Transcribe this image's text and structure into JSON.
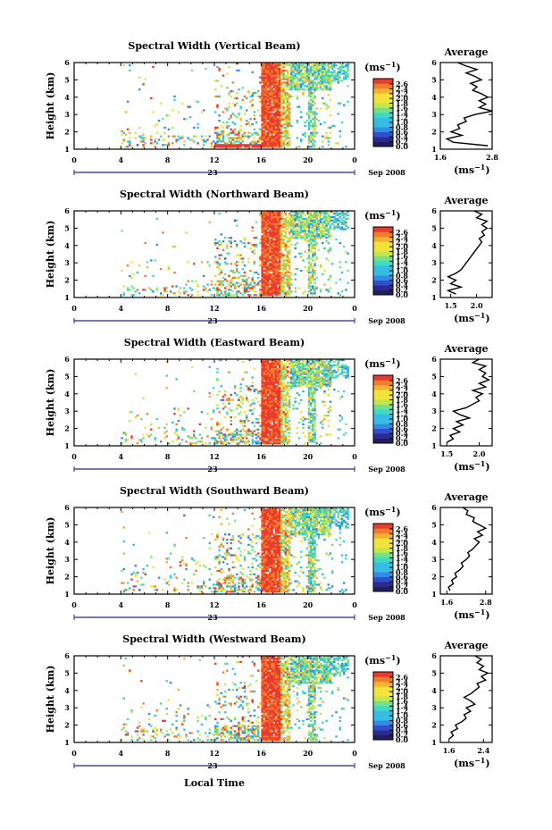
{
  "figure": {
    "xlabel": "Local Time",
    "date_label": "Sep 2008",
    "day_label": "23",
    "colorbar_unit": "(ms",
    "colorbar_unit_exp": "−1",
    "colorbar_unit_close": ")",
    "avg_unit": "(ms",
    "avg_unit_exp": "−1",
    "avg_unit_close": ")",
    "avg_title": "Average",
    "colorscale": [
      "#2b2a8f",
      "#2f50c9",
      "#2f8de6",
      "#37bde4",
      "#3fd9c4",
      "#73e08c",
      "#c0e84c",
      "#f2e33a",
      "#f6b12f",
      "#f07c2e",
      "#eb3a2b"
    ]
  },
  "chart_data": [
    {
      "type": "heatmap",
      "title": "Spectral Width (Vertical Beam)",
      "ylabel": "Height (km)",
      "x_ticks": [
        "0",
        "4",
        "8",
        "12",
        "16",
        "20",
        "0"
      ],
      "xlim": [
        0,
        24
      ],
      "y_ticks": [
        "1",
        "2",
        "3",
        "4",
        "5",
        "6"
      ],
      "ylim": [
        1,
        6
      ],
      "colorbar_ticks": [
        "2.6",
        "2.4",
        "2.2",
        "2.0",
        "1.8",
        "1.6",
        "1.4",
        "1.2",
        "1.0",
        "0.8",
        "0.6",
        "0.4",
        "0.2",
        "0.0"
      ],
      "colorbar_range": [
        0.0,
        2.8
      ],
      "average": {
        "x_ticks": [
          "1.6",
          "2.8"
        ],
        "xlim": [
          1.6,
          2.8
        ],
        "ylim": [
          1,
          6
        ],
        "y_ticks": [
          "1",
          "2",
          "3",
          "4",
          "5",
          "6"
        ],
        "profile": [
          [
            1.2,
            2.7
          ],
          [
            1.4,
            1.9
          ],
          [
            1.6,
            1.75
          ],
          [
            1.8,
            2.1
          ],
          [
            2.0,
            1.85
          ],
          [
            2.2,
            2.05
          ],
          [
            2.4,
            2.0
          ],
          [
            2.6,
            2.2
          ],
          [
            2.8,
            2.15
          ],
          [
            3.0,
            2.4
          ],
          [
            3.2,
            2.8
          ],
          [
            3.4,
            2.5
          ],
          [
            3.6,
            2.65
          ],
          [
            3.8,
            2.5
          ],
          [
            4.0,
            2.7
          ],
          [
            4.2,
            2.55
          ],
          [
            4.4,
            2.35
          ],
          [
            4.6,
            2.45
          ],
          [
            4.8,
            2.3
          ],
          [
            5.0,
            2.55
          ],
          [
            5.2,
            2.4
          ],
          [
            5.4,
            2.2
          ],
          [
            5.6,
            2.45
          ],
          [
            5.8,
            2.2
          ],
          [
            6.0,
            2.0
          ]
        ]
      }
    },
    {
      "type": "heatmap",
      "title": "Spectral Width (Northward Beam)",
      "ylabel": "Height (km)",
      "x_ticks": [
        "0",
        "4",
        "8",
        "12",
        "16",
        "20",
        "0"
      ],
      "xlim": [
        0,
        24
      ],
      "y_ticks": [
        "1",
        "2",
        "3",
        "4",
        "5",
        "6"
      ],
      "ylim": [
        1,
        6
      ],
      "colorbar_ticks": [
        "2.6",
        "2.4",
        "2.2",
        "2.0",
        "1.8",
        "1.6",
        "1.4",
        "1.2",
        "1.0",
        "0.8",
        "0.6",
        "0.4",
        "0.2",
        "0.0"
      ],
      "colorbar_range": [
        0.0,
        2.8
      ],
      "average": {
        "x_ticks": [
          "1.5",
          "2.0"
        ],
        "xlim": [
          1.3,
          2.3
        ],
        "ylim": [
          1,
          6
        ],
        "y_ticks": [
          "1",
          "2",
          "3",
          "4",
          "5",
          "6"
        ],
        "profile": [
          [
            1.2,
            1.6
          ],
          [
            1.4,
            1.45
          ],
          [
            1.6,
            1.7
          ],
          [
            1.8,
            1.5
          ],
          [
            2.0,
            1.6
          ],
          [
            2.2,
            1.45
          ],
          [
            2.4,
            1.6
          ],
          [
            2.6,
            1.7
          ],
          [
            2.8,
            1.75
          ],
          [
            3.0,
            1.8
          ],
          [
            3.2,
            1.85
          ],
          [
            3.4,
            1.9
          ],
          [
            3.6,
            1.95
          ],
          [
            3.8,
            2.0
          ],
          [
            4.0,
            2.05
          ],
          [
            4.2,
            2.1
          ],
          [
            4.4,
            2.05
          ],
          [
            4.6,
            2.15
          ],
          [
            4.8,
            2.1
          ],
          [
            5.0,
            2.2
          ],
          [
            5.2,
            2.1
          ],
          [
            5.4,
            2.2
          ],
          [
            5.6,
            2.0
          ],
          [
            5.8,
            2.1
          ],
          [
            6.0,
            1.95
          ]
        ]
      }
    },
    {
      "type": "heatmap",
      "title": "Spectral Width (Eastward Beam)",
      "ylabel": "Height (km)",
      "x_ticks": [
        "0",
        "4",
        "8",
        "12",
        "16",
        "20",
        "0"
      ],
      "xlim": [
        0,
        24
      ],
      "y_ticks": [
        "1",
        "2",
        "3",
        "4",
        "5",
        "6"
      ],
      "ylim": [
        1,
        6
      ],
      "colorbar_ticks": [
        "2.6",
        "2.4",
        "2.2",
        "2.0",
        "1.8",
        "1.6",
        "1.4",
        "1.2",
        "1.0",
        "0.8",
        "0.6",
        "0.4",
        "0.2",
        "0.0"
      ],
      "colorbar_range": [
        0.0,
        2.8
      ],
      "average": {
        "x_ticks": [
          "1.5",
          "2.0"
        ],
        "xlim": [
          1.4,
          2.2
        ],
        "ylim": [
          1,
          6
        ],
        "y_ticks": [
          "1",
          "2",
          "3",
          "4",
          "5",
          "6"
        ],
        "profile": [
          [
            1.2,
            1.5
          ],
          [
            1.4,
            1.6
          ],
          [
            1.6,
            1.55
          ],
          [
            1.8,
            1.7
          ],
          [
            2.0,
            1.6
          ],
          [
            2.2,
            1.75
          ],
          [
            2.4,
            1.65
          ],
          [
            2.6,
            1.85
          ],
          [
            2.8,
            1.7
          ],
          [
            3.0,
            1.6
          ],
          [
            3.2,
            1.8
          ],
          [
            3.4,
            1.9
          ],
          [
            3.6,
            2.0
          ],
          [
            3.8,
            1.95
          ],
          [
            4.0,
            2.05
          ],
          [
            4.2,
            1.9
          ],
          [
            4.4,
            2.1
          ],
          [
            4.6,
            2.0
          ],
          [
            4.8,
            2.15
          ],
          [
            5.0,
            2.05
          ],
          [
            5.2,
            2.1
          ],
          [
            5.4,
            2.0
          ],
          [
            5.6,
            2.1
          ],
          [
            5.8,
            1.9
          ],
          [
            6.0,
            2.0
          ]
        ]
      }
    },
    {
      "type": "heatmap",
      "title": "Spectral Width (Southward Beam)",
      "ylabel": "Height (km)",
      "x_ticks": [
        "0",
        "4",
        "8",
        "12",
        "16",
        "20",
        "0"
      ],
      "xlim": [
        0,
        24
      ],
      "y_ticks": [
        "1",
        "2",
        "3",
        "4",
        "5",
        "6"
      ],
      "ylim": [
        1,
        6
      ],
      "colorbar_ticks": [
        "2.6",
        "2.4",
        "2.2",
        "2.0",
        "1.8",
        "1.6",
        "1.4",
        "1.2",
        "1.0",
        "0.8",
        "0.6",
        "0.4",
        "0.2",
        "0.0"
      ],
      "colorbar_range": [
        0.0,
        2.8
      ],
      "average": {
        "x_ticks": [
          "1.6",
          "2.8"
        ],
        "xlim": [
          1.4,
          3.0
        ],
        "ylim": [
          1,
          6
        ],
        "y_ticks": [
          "1",
          "2",
          "3",
          "4",
          "5",
          "6"
        ],
        "profile": [
          [
            1.2,
            1.7
          ],
          [
            1.4,
            1.65
          ],
          [
            1.6,
            1.8
          ],
          [
            1.8,
            1.75
          ],
          [
            2.0,
            1.9
          ],
          [
            2.2,
            1.85
          ],
          [
            2.4,
            2.0
          ],
          [
            2.6,
            2.1
          ],
          [
            2.8,
            2.05
          ],
          [
            3.0,
            2.2
          ],
          [
            3.2,
            2.3
          ],
          [
            3.4,
            2.25
          ],
          [
            3.6,
            2.4
          ],
          [
            3.8,
            2.5
          ],
          [
            4.0,
            2.6
          ],
          [
            4.2,
            2.45
          ],
          [
            4.4,
            2.7
          ],
          [
            4.6,
            2.55
          ],
          [
            4.8,
            2.8
          ],
          [
            5.0,
            2.6
          ],
          [
            5.2,
            2.4
          ],
          [
            5.4,
            2.45
          ],
          [
            5.6,
            2.2
          ],
          [
            5.8,
            2.25
          ],
          [
            6.0,
            2.1
          ]
        ]
      }
    },
    {
      "type": "heatmap",
      "title": "Spectral Width (Westward Beam)",
      "ylabel": "Height (km)",
      "x_ticks": [
        "0",
        "4",
        "8",
        "12",
        "16",
        "20",
        "0"
      ],
      "xlim": [
        0,
        24
      ],
      "y_ticks": [
        "1",
        "2",
        "3",
        "4",
        "5",
        "6"
      ],
      "ylim": [
        1,
        6
      ],
      "colorbar_ticks": [
        "2.6",
        "2.4",
        "2.2",
        "2.0",
        "1.8",
        "1.6",
        "1.4",
        "1.2",
        "1.0",
        "0.8",
        "0.6",
        "0.4",
        "0.2",
        "0.0"
      ],
      "colorbar_range": [
        0.0,
        2.8
      ],
      "average": {
        "x_ticks": [
          "1.6",
          "2.4"
        ],
        "xlim": [
          1.4,
          2.6
        ],
        "ylim": [
          1,
          6
        ],
        "y_ticks": [
          "1",
          "2",
          "3",
          "4",
          "5",
          "6"
        ],
        "profile": [
          [
            1.2,
            1.6
          ],
          [
            1.4,
            1.7
          ],
          [
            1.6,
            1.65
          ],
          [
            1.8,
            1.8
          ],
          [
            2.0,
            1.75
          ],
          [
            2.2,
            1.9
          ],
          [
            2.4,
            2.0
          ],
          [
            2.6,
            1.95
          ],
          [
            2.8,
            2.1
          ],
          [
            3.0,
            2.0
          ],
          [
            3.2,
            2.2
          ],
          [
            3.4,
            2.1
          ],
          [
            3.6,
            1.95
          ],
          [
            3.8,
            2.1
          ],
          [
            4.0,
            2.2
          ],
          [
            4.2,
            2.3
          ],
          [
            4.4,
            2.25
          ],
          [
            4.6,
            2.45
          ],
          [
            4.8,
            2.35
          ],
          [
            5.0,
            2.5
          ],
          [
            5.2,
            2.3
          ],
          [
            5.4,
            2.4
          ],
          [
            5.6,
            2.25
          ],
          [
            5.8,
            2.35
          ],
          [
            6.0,
            2.2
          ]
        ]
      }
    }
  ]
}
